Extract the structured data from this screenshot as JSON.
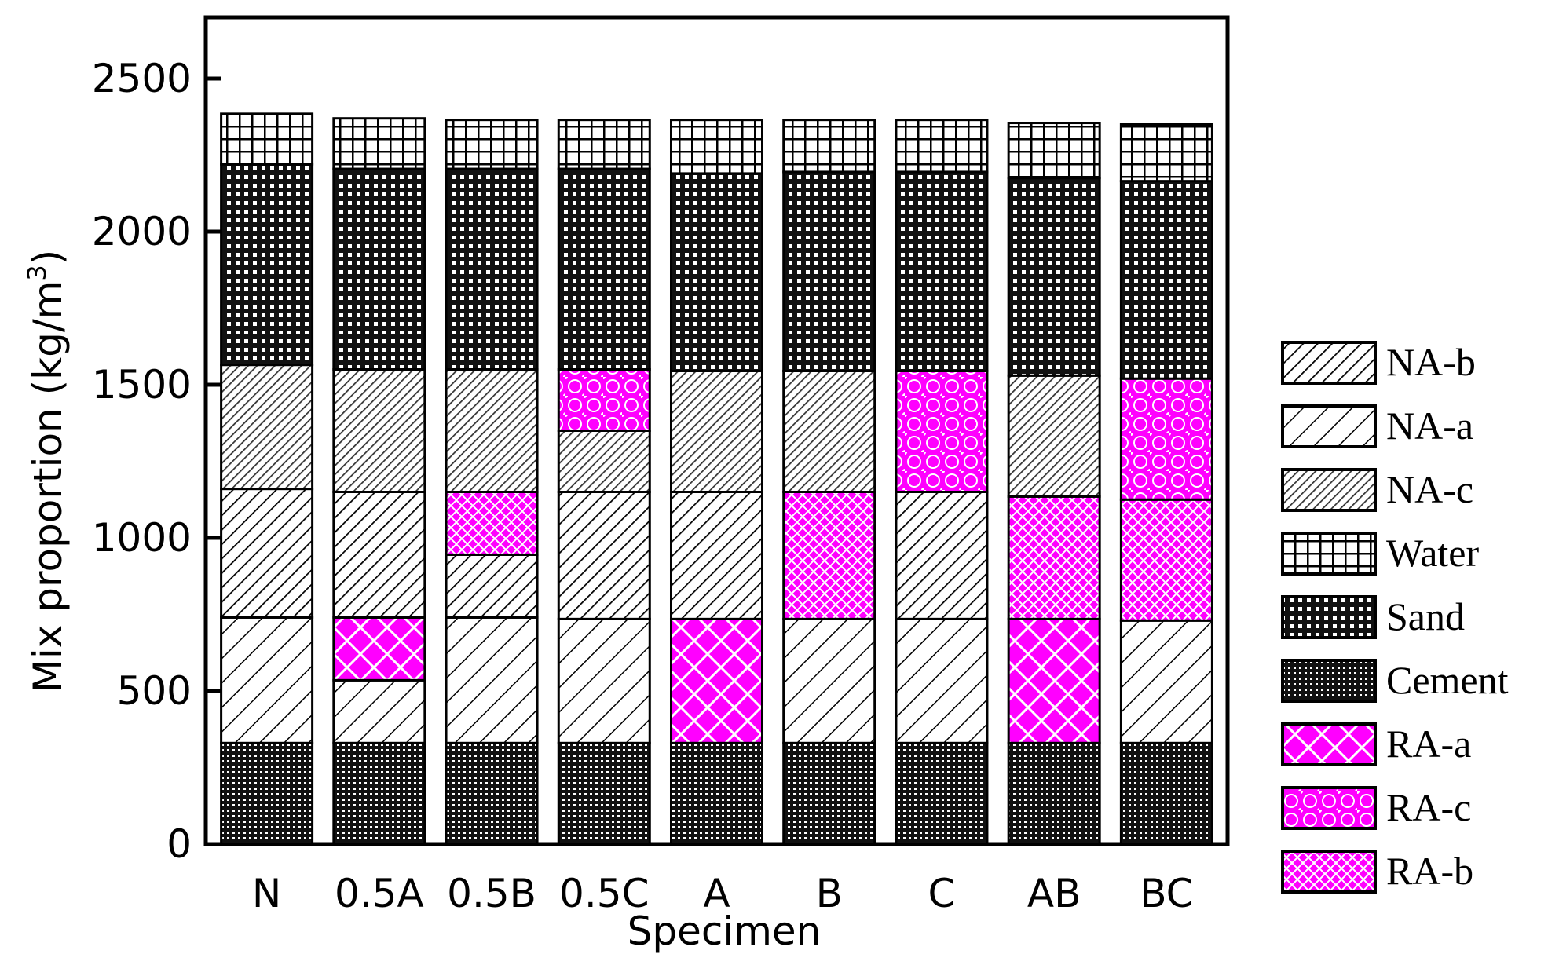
{
  "chart_data": {
    "type": "bar",
    "stacked": true,
    "xlabel": "Specimen",
    "ylabel": "Mix proportion (kg/m",
    "ylabel_superscript": "3",
    "ylabel_close": ")",
    "ylim": [
      0,
      2700
    ],
    "yticks": [
      0,
      500,
      1000,
      1500,
      2000,
      2500
    ],
    "categories": [
      "N",
      "0.5A",
      "0.5B",
      "0.5C",
      "A",
      "B",
      "C",
      "AB",
      "BC"
    ],
    "series": [
      {
        "name": "Cement",
        "pattern": "cement",
        "values": [
          330,
          330,
          330,
          330,
          330,
          330,
          330,
          330,
          330
        ]
      },
      {
        "name": "NA-a",
        "pattern": "na-a",
        "values": [
          410,
          205,
          410,
          405,
          0,
          405,
          405,
          0,
          400
        ]
      },
      {
        "name": "RA-a",
        "pattern": "ra-a",
        "values": [
          0,
          205,
          0,
          0,
          405,
          0,
          0,
          405,
          0
        ]
      },
      {
        "name": "NA-b",
        "pattern": "na-b",
        "values": [
          420,
          410,
          205,
          415,
          415,
          0,
          415,
          0,
          0
        ]
      },
      {
        "name": "RA-b",
        "pattern": "ra-b",
        "values": [
          0,
          0,
          205,
          0,
          0,
          415,
          0,
          400,
          395
        ]
      },
      {
        "name": "NA-c",
        "pattern": "na-c",
        "values": [
          405,
          400,
          400,
          200,
          395,
          395,
          0,
          395,
          0
        ]
      },
      {
        "name": "RA-c",
        "pattern": "ra-c",
        "values": [
          0,
          0,
          0,
          200,
          0,
          0,
          395,
          0,
          395
        ]
      },
      {
        "name": "Sand",
        "pattern": "sand",
        "values": [
          655,
          655,
          655,
          655,
          645,
          650,
          650,
          645,
          645
        ]
      },
      {
        "name": "Water",
        "pattern": "water",
        "values": [
          165,
          165,
          160,
          160,
          175,
          170,
          170,
          180,
          185
        ]
      }
    ],
    "legend": {
      "position": "right",
      "entries": [
        {
          "name": "NA-b",
          "pattern": "na-b"
        },
        {
          "name": "NA-a",
          "pattern": "na-a"
        },
        {
          "name": "NA-c",
          "pattern": "na-c"
        },
        {
          "name": "Water",
          "pattern": "water"
        },
        {
          "name": "Sand",
          "pattern": "sand"
        },
        {
          "name": "Cement",
          "pattern": "cement"
        },
        {
          "name": "RA-a",
          "pattern": "ra-a"
        },
        {
          "name": "RA-c",
          "pattern": "ra-c"
        },
        {
          "name": "RA-b",
          "pattern": "ra-b"
        }
      ]
    },
    "colors": {
      "outline": "#000000",
      "recycled_fill": "#ff00ff",
      "background": "#ffffff"
    },
    "grid": false
  }
}
